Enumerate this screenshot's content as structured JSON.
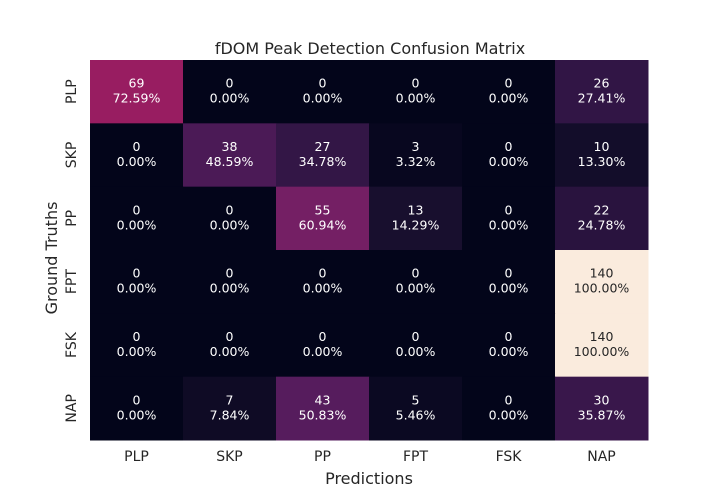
{
  "chart_data": {
    "type": "heatmap",
    "title": "fDOM Peak Detection Confusion Matrix",
    "xlabel": "Predictions",
    "ylabel": "Ground Truths",
    "x_categories": [
      "PLP",
      "SKP",
      "PP",
      "FPT",
      "FSK",
      "NAP"
    ],
    "y_categories": [
      "PLP",
      "SKP",
      "PP",
      "FPT",
      "FSK",
      "NAP"
    ],
    "counts": [
      [
        69,
        0,
        0,
        0,
        0,
        26
      ],
      [
        0,
        38,
        27,
        3,
        0,
        10
      ],
      [
        0,
        0,
        55,
        13,
        0,
        22
      ],
      [
        0,
        0,
        0,
        0,
        0,
        140
      ],
      [
        0,
        0,
        0,
        0,
        0,
        140
      ],
      [
        0,
        7,
        43,
        5,
        0,
        30
      ]
    ],
    "percent_labels": [
      [
        "72.59%",
        "0.00%",
        "0.00%",
        "0.00%",
        "0.00%",
        "27.41%"
      ],
      [
        "0.00%",
        "48.59%",
        "34.78%",
        "3.32%",
        "0.00%",
        "13.30%"
      ],
      [
        "0.00%",
        "0.00%",
        "60.94%",
        "14.29%",
        "0.00%",
        "24.78%"
      ],
      [
        "0.00%",
        "0.00%",
        "0.00%",
        "0.00%",
        "0.00%",
        "100.00%"
      ],
      [
        "0.00%",
        "0.00%",
        "0.00%",
        "0.00%",
        "0.00%",
        "100.00%"
      ],
      [
        "0.00%",
        "7.84%",
        "50.83%",
        "5.46%",
        "0.00%",
        "35.87%"
      ]
    ],
    "colorbar": false,
    "grid": false
  }
}
